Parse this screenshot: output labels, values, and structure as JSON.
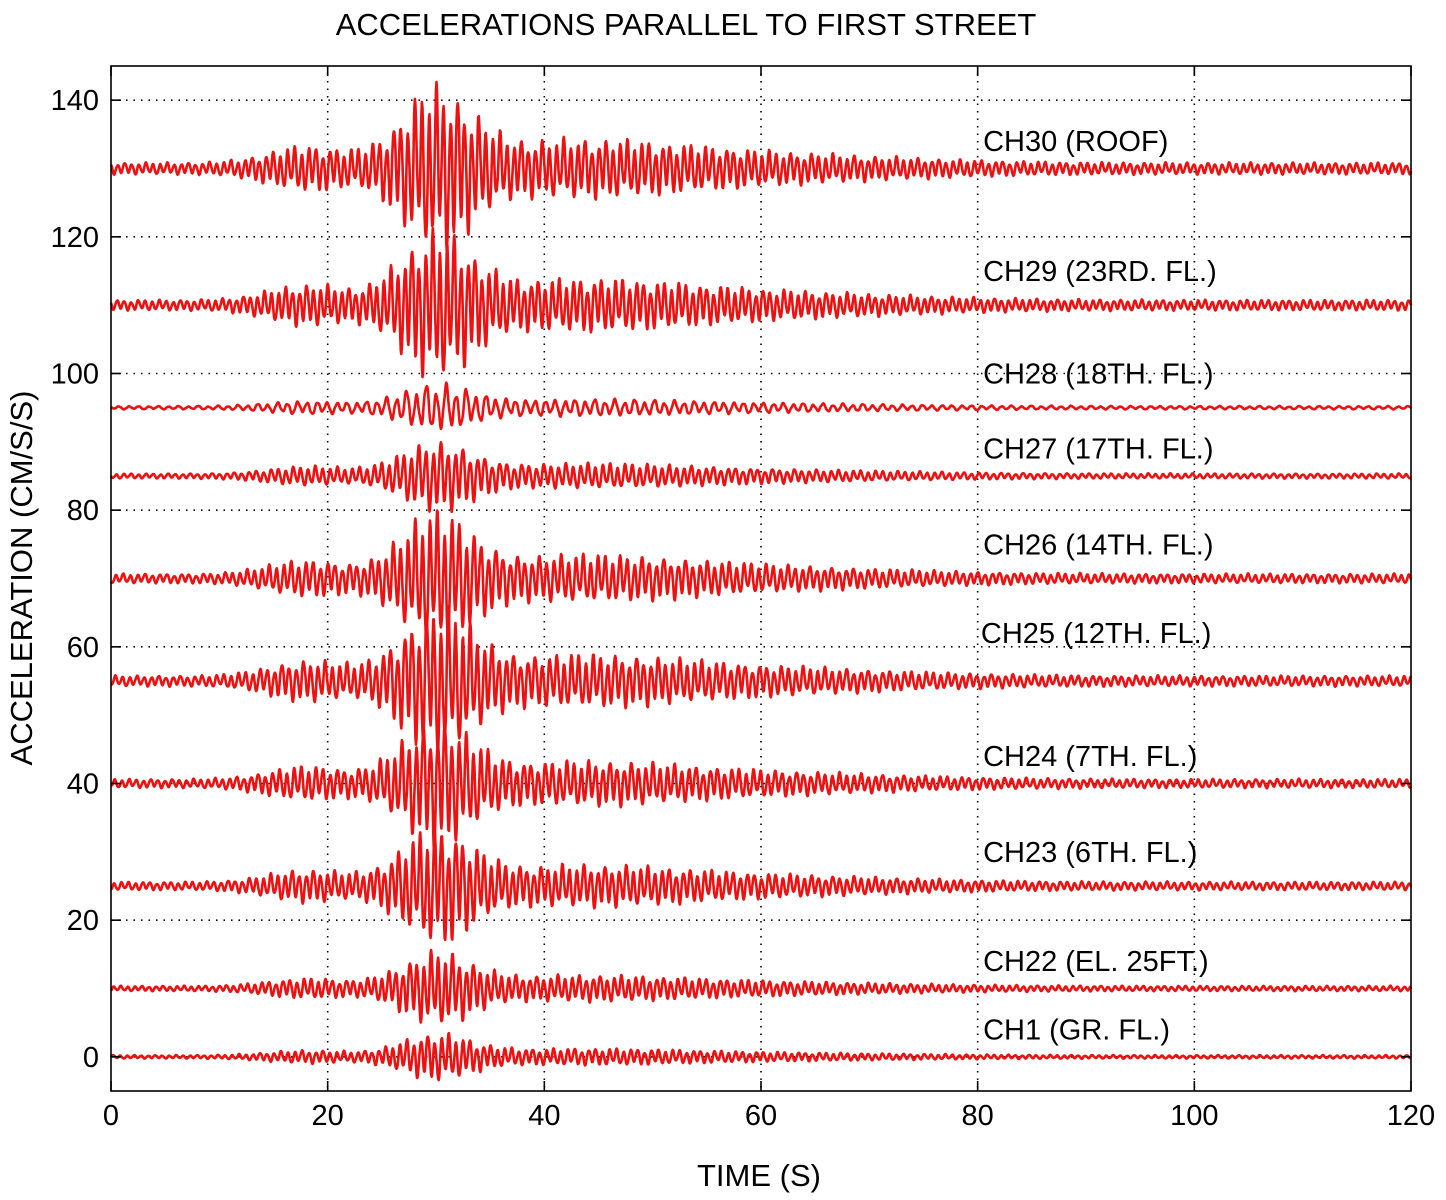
{
  "chart_data": {
    "type": "line",
    "title": "ACCELERATIONS PARALLEL TO FIRST STREET",
    "xlabel": "TIME (S)",
    "ylabel": "ACCELERATION (CM/S/S)",
    "xlim": [
      0,
      120
    ],
    "ylim": [
      -5,
      145
    ],
    "xticks": [
      0,
      20,
      40,
      60,
      80,
      100,
      120
    ],
    "yticks": [
      0,
      20,
      40,
      60,
      80,
      100,
      120,
      140
    ],
    "xtick_labels": [
      "0",
      "20",
      "40",
      "60",
      "80",
      "100",
      "120"
    ],
    "ytick_labels": [
      "0",
      "20",
      "40",
      "60",
      "80",
      "100",
      "120",
      "140"
    ],
    "grid": true,
    "line_color": "#ee1111",
    "series": [
      {
        "name": "CH30 (ROOF)",
        "offset": 130,
        "peak_amplitude": 10.5,
        "label_x": 80.5,
        "label_y": 134
      },
      {
        "name": "CH29 (23RD. FL.)",
        "offset": 110,
        "peak_amplitude": 9.5,
        "label_x": 80.5,
        "label_y": 115
      },
      {
        "name": "CH28 (18TH. FL.)",
        "offset": 95,
        "peak_amplitude": 3.0,
        "label_x": 80.5,
        "label_y": 100
      },
      {
        "name": "CH27 (17TH. FL.)",
        "offset": 85,
        "peak_amplitude": 4.5,
        "label_x": 80.5,
        "label_y": 89
      },
      {
        "name": "CH26 (14TH. FL.)",
        "offset": 70,
        "peak_amplitude": 8.5,
        "label_x": 80.5,
        "label_y": 75
      },
      {
        "name": "CH25 (12TH. FL.)",
        "offset": 55,
        "peak_amplitude": 9.5,
        "label_x": 80.3,
        "label_y": 62
      },
      {
        "name": "CH24 (7TH. FL.)",
        "offset": 40,
        "peak_amplitude": 8.0,
        "label_x": 80.5,
        "label_y": 44
      },
      {
        "name": "CH23 (6TH. FL.)",
        "offset": 25,
        "peak_amplitude": 7.5,
        "label_x": 80.5,
        "label_y": 30
      },
      {
        "name": "CH22 (EL. 25FT.)",
        "offset": 10,
        "peak_amplitude": 4.7,
        "label_x": 80.5,
        "label_y": 14
      },
      {
        "name": "CH1 (GR. FL.)",
        "offset": 0,
        "peak_amplitude": 3.0,
        "label_x": 80.5,
        "label_y": 4
      }
    ]
  }
}
